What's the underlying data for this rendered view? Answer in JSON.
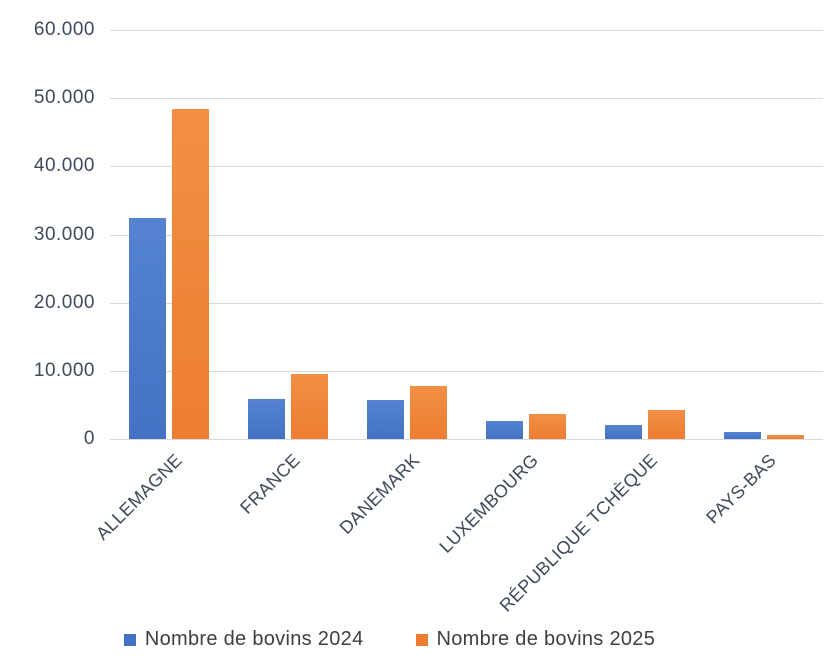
{
  "chart_data": {
    "type": "bar",
    "title": "",
    "categories": [
      "ALLEMAGNE",
      "FRANCE",
      "DANEMARK",
      "LUXEMBOURG",
      "RÉPUBLIQUE TCHÈQUE",
      "PAYS-BAS"
    ],
    "series": [
      {
        "name": "Nombre de bovins 2024",
        "color": "#4472C4",
        "color_light": "#5583d2",
        "values": [
          32400,
          5800,
          5700,
          2600,
          2100,
          1100
        ]
      },
      {
        "name": "Nombre de bovins 2025",
        "color": "#ED7D31",
        "color_light": "#f28f44",
        "values": [
          48400,
          9500,
          7800,
          3700,
          4200,
          600
        ]
      }
    ],
    "xlabel": "",
    "ylabel": "",
    "ylim": [
      0,
      60000
    ],
    "yticks": [
      0,
      10000,
      20000,
      30000,
      40000,
      50000,
      60000
    ],
    "ytick_labels": [
      "0",
      "10.000",
      "20.000",
      "30.000",
      "40.000",
      "50.000",
      "60.000"
    ],
    "grid": "horizontal",
    "legend_position": "bottom",
    "colors": {
      "background": "#ffffff",
      "gridline": "#d9d9d9",
      "axis_label_text": "#3f4a5a",
      "legend_text": "#3f3f3f"
    }
  }
}
